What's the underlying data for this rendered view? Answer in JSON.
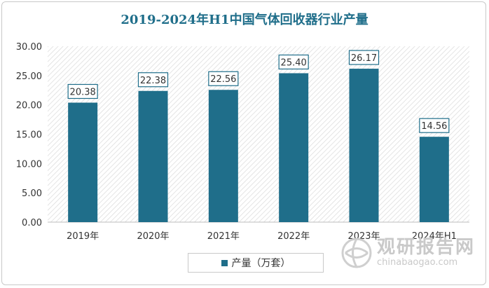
{
  "chart_data": {
    "type": "bar",
    "title": "2019-2024年H1中国气体回收器行业产量",
    "categories": [
      "2019年",
      "2020年",
      "2021年",
      "2022年",
      "2023年",
      "2024年H1"
    ],
    "series": [
      {
        "name": "产量（万套）",
        "values": [
          20.38,
          22.38,
          22.56,
          25.4,
          26.17,
          14.56
        ]
      }
    ],
    "data_labels": [
      "20.38",
      "22.38",
      "22.56",
      "25.40",
      "26.17",
      "14.56"
    ],
    "y_ticks": [
      "0.00",
      "5.00",
      "10.00",
      "15.00",
      "20.00",
      "25.00",
      "30.00"
    ],
    "ylim": [
      0,
      30
    ],
    "xlabel": "",
    "ylabel": "",
    "legend_position": "bottom",
    "colors": {
      "bar": "#1f6e8a",
      "title": "#1f6e8a",
      "hatch": "#dcdcdc"
    }
  },
  "watermark": {
    "name_cn": "观研报告网",
    "url": "chinabaogao.com",
    "logo_icon": "globe-logo-icon"
  }
}
